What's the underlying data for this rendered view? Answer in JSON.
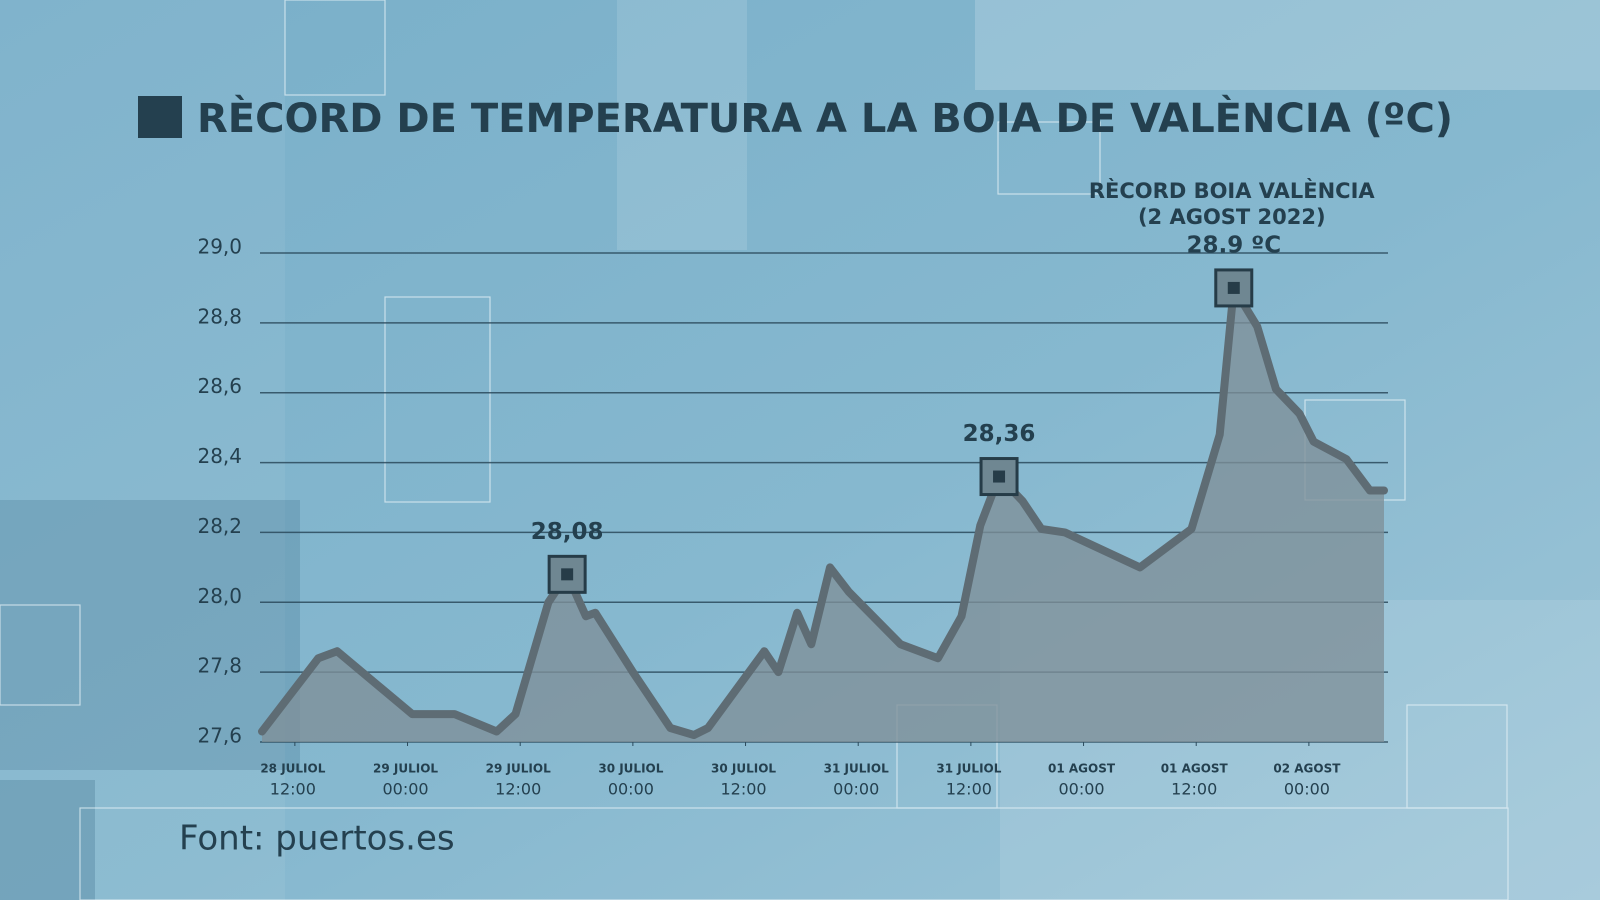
{
  "chart_data": {
    "type": "area",
    "title": "RÈCORD DE TEMPERATURA A LA BOIA DE VALÈNCIA (ºC)",
    "source": "Font: puertos.es",
    "annotations": [
      "RÈCORD BOIA VALÈNCIA",
      "(2 AGOST 2022)"
    ],
    "x": [
      "07-28T08:30",
      "07-28T14:30",
      "07-28T16:30",
      "07-29T00:30",
      "07-29T05:00",
      "07-29T09:30",
      "07-29T11:30",
      "07-29T15:00",
      "07-29T17:00",
      "07-29T19:00",
      "07-29T20:00",
      "07-30T00:00",
      "07-30T04:00",
      "07-30T06:30",
      "07-30T08:00",
      "07-30T14:00",
      "07-30T15:30",
      "07-30T17:30",
      "07-30T19:00",
      "07-30T21:00",
      "07-30T23:00",
      "07-31T04:30",
      "07-31T08:30",
      "07-31T11:00",
      "07-31T13:00",
      "07-31T15:00",
      "07-31T17:30",
      "07-31T19:30",
      "07-31T22:00",
      "08-01T06:00",
      "08-01T11:30",
      "08-01T14:30",
      "08-01T16:00",
      "08-01T18:30",
      "08-01T20:30",
      "08-01T23:00",
      "08-02T00:30",
      "08-02T04:00",
      "08-02T06:30",
      "08-02T08:00"
    ],
    "values": [
      27.63,
      27.84,
      27.86,
      27.68,
      27.68,
      27.63,
      27.68,
      28.0,
      28.08,
      27.96,
      27.97,
      27.8,
      27.64,
      27.62,
      27.64,
      27.86,
      27.8,
      27.97,
      27.88,
      28.1,
      28.03,
      27.88,
      27.84,
      27.96,
      28.22,
      28.36,
      28.29,
      28.21,
      28.2,
      28.1,
      28.21,
      28.48,
      28.9,
      28.79,
      28.61,
      28.54,
      28.46,
      28.41,
      28.32,
      28.32
    ],
    "value_labels": [
      null,
      null,
      null,
      null,
      null,
      null,
      null,
      null,
      "28,08",
      null,
      null,
      null,
      null,
      null,
      null,
      null,
      null,
      null,
      null,
      null,
      null,
      null,
      null,
      null,
      null,
      "28,36",
      null,
      null,
      null,
      null,
      null,
      null,
      "28.9 ºC",
      null,
      null,
      null,
      null,
      null,
      null,
      null
    ],
    "color": "#5e6c74",
    "fill": "#7f9099",
    "xlim": [
      "07-28T08:30",
      "08-02T08:00"
    ],
    "xticks": [
      {
        "value": "07-28T12:00",
        "label": [
          "28 JULIOL",
          "12:00"
        ]
      },
      {
        "value": "07-29T00:00",
        "label": [
          "29 JULIOL",
          "00:00"
        ]
      },
      {
        "value": "07-29T12:00",
        "label": [
          "29 JULIOL",
          "12:00"
        ]
      },
      {
        "value": "07-30T00:00",
        "label": [
          "30 JULIOL",
          "00:00"
        ]
      },
      {
        "value": "07-30T12:00",
        "label": [
          "30 JULIOL",
          "12:00"
        ]
      },
      {
        "value": "07-31T00:00",
        "label": [
          "31 JULIOL",
          "00:00"
        ]
      },
      {
        "value": "07-31T12:00",
        "label": [
          "31 JULIOL",
          "12:00"
        ]
      },
      {
        "value": "08-01T00:00",
        "label": [
          "01 AGOST",
          "00:00"
        ]
      },
      {
        "value": "08-01T12:00",
        "label": [
          "01 AGOST",
          "12:00"
        ]
      },
      {
        "value": "08-02T00:00",
        "label": [
          "02 AGOST",
          "00:00"
        ]
      }
    ],
    "ylim": [
      27.6,
      29.0
    ],
    "yticks": [
      {
        "value": 27.6,
        "label": "27,6"
      },
      {
        "value": 27.8,
        "label": "27,8"
      },
      {
        "value": 28.0,
        "label": "28,0"
      },
      {
        "value": 28.2,
        "label": "28,2"
      },
      {
        "value": 28.4,
        "label": "28,4"
      },
      {
        "value": 28.6,
        "label": "28,6"
      },
      {
        "value": 28.8,
        "label": "28,8"
      },
      {
        "value": 29.0,
        "label": "29,0"
      }
    ],
    "grid": true
  }
}
